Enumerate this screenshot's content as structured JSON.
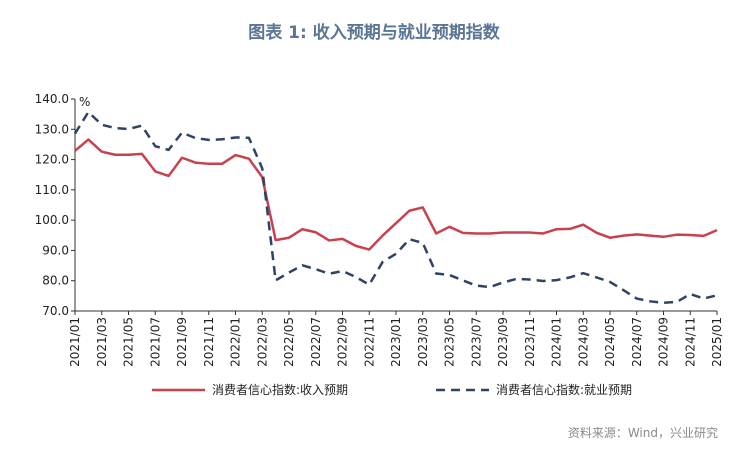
{
  "title": "图表 1:  收入预期与就业预期指数",
  "source": "资料来源：Wind，兴业研究",
  "colors": {
    "income": "#c8414e",
    "employment": "#2f4464"
  },
  "chart_data": {
    "type": "line",
    "ylabel": "%",
    "ylim": [
      70,
      140
    ],
    "yticks": [
      "70.0",
      "80.0",
      "90.0",
      "100.0",
      "110.0",
      "120.0",
      "130.0",
      "140.0"
    ],
    "xtick_labels": [
      "2021/01",
      "2021/03",
      "2021/05",
      "2021/07",
      "2021/09",
      "2021/11",
      "2022/01",
      "2022/03",
      "2022/05",
      "2022/07",
      "2022/09",
      "2022/11",
      "2023/01",
      "2023/03",
      "2023/05",
      "2023/07",
      "2023/09",
      "2023/11",
      "2024/01",
      "2024/03",
      "2024/05",
      "2024/07",
      "2024/09",
      "2024/11",
      "2025/01"
    ],
    "x": [
      "2021/01",
      "2021/02",
      "2021/03",
      "2021/04",
      "2021/05",
      "2021/06",
      "2021/07",
      "2021/08",
      "2021/09",
      "2021/10",
      "2021/11",
      "2021/12",
      "2022/01",
      "2022/02",
      "2022/03",
      "2022/04",
      "2022/05",
      "2022/06",
      "2022/07",
      "2022/08",
      "2022/09",
      "2022/10",
      "2022/11",
      "2022/12",
      "2023/01",
      "2023/02",
      "2023/03",
      "2023/04",
      "2023/05",
      "2023/06",
      "2023/07",
      "2023/08",
      "2023/09",
      "2023/10",
      "2023/11",
      "2023/12",
      "2024/01",
      "2024/02",
      "2024/03",
      "2024/04",
      "2024/05",
      "2024/06",
      "2024/07",
      "2024/08",
      "2024/09",
      "2024/10",
      "2024/11",
      "2024/12",
      "2025/01"
    ],
    "series": [
      {
        "name": "消费者信心指数:收入预期",
        "style": "solid",
        "values": [
          122.9,
          126.6,
          122.6,
          121.6,
          121.6,
          121.9,
          116.1,
          114.6,
          120.6,
          119.0,
          118.6,
          118.6,
          121.5,
          120.3,
          114.2,
          93.4,
          94.2,
          97.0,
          96.0,
          93.3,
          93.8,
          91.5,
          90.3,
          94.9,
          99.0,
          103.1,
          104.2,
          95.6,
          97.8,
          95.8,
          95.6,
          95.6,
          95.9,
          95.9,
          95.9,
          95.6,
          97.0,
          97.1,
          98.5,
          95.8,
          94.2,
          94.9,
          95.3,
          94.9,
          94.5,
          95.2,
          95.1,
          94.8,
          96.7
        ]
      },
      {
        "name": "消费者信心指数:就业预期",
        "style": "dashed",
        "values": [
          128.6,
          135.7,
          131.5,
          130.4,
          130.1,
          131.2,
          124.4,
          123.2,
          128.9,
          127.1,
          126.5,
          126.7,
          127.3,
          127.2,
          117.1,
          80.1,
          82.7,
          85.1,
          83.8,
          82.3,
          83.2,
          81.2,
          78.7,
          86.2,
          88.9,
          93.7,
          92.5,
          82.4,
          81.9,
          80.1,
          78.4,
          77.9,
          79.4,
          80.6,
          80.4,
          79.9,
          80.2,
          81.1,
          82.5,
          81.1,
          79.6,
          76.9,
          74.1,
          73.2,
          72.7,
          73.0,
          75.6,
          74.1,
          75.2
        ]
      }
    ]
  }
}
